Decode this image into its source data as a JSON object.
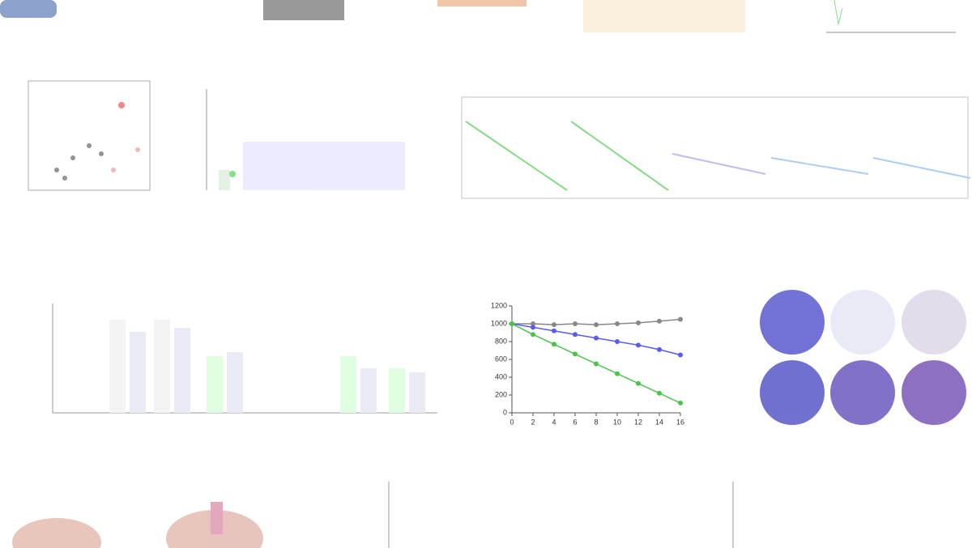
{
  "chart_data": {
    "type": "line",
    "x": [
      0,
      2,
      4,
      6,
      8,
      10,
      12,
      14,
      16
    ],
    "series": [
      {
        "color": "#888888",
        "values": [
          1000,
          1000,
          990,
          1000,
          990,
          1000,
          1010,
          1030,
          1050
        ]
      },
      {
        "color": "#5a5af0",
        "values": [
          1000,
          960,
          920,
          880,
          840,
          800,
          760,
          710,
          650
        ]
      },
      {
        "color": "#4cc44c",
        "values": [
          1000,
          880,
          770,
          660,
          550,
          440,
          330,
          220,
          110
        ]
      }
    ],
    "xlim": [
      0,
      16
    ],
    "xticks": [
      0,
      2,
      4,
      6,
      8,
      10,
      12,
      14,
      16
    ],
    "ylim": [
      0,
      1200
    ],
    "yticks": [
      0,
      200,
      400,
      600,
      800,
      1000,
      1200
    ]
  }
}
